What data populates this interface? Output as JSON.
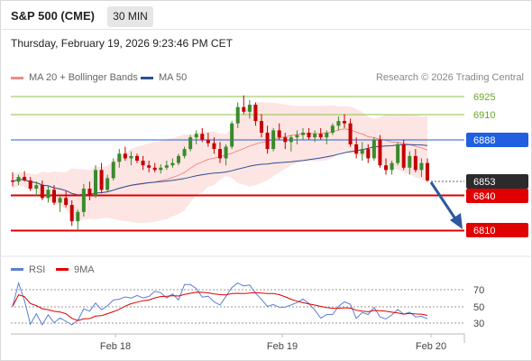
{
  "header": {
    "title": "S&P 500 (CME)",
    "timeframe": "30 MIN"
  },
  "datetime": "Thursday, February 19, 2026 9:23:46 PM CET",
  "legend": [
    {
      "label": "MA 20 + Bollinger Bands",
      "color": "#f08c84"
    },
    {
      "label": "MA 50",
      "color": "#2c4f96"
    }
  ],
  "watermark": "Research © 2026 Trading Central",
  "levels": [
    {
      "value": "6925",
      "kind": "resistance-green"
    },
    {
      "value": "6910",
      "kind": "resistance-green"
    },
    {
      "value": "6888",
      "kind": "pivot-blue"
    },
    {
      "value": "6853",
      "kind": "last-price"
    },
    {
      "value": "6840",
      "kind": "support-red"
    },
    {
      "value": "6810",
      "kind": "support-red"
    }
  ],
  "rsi_legend": [
    {
      "label": "RSI",
      "color": "#5b7fd6"
    },
    {
      "label": "9MA",
      "color": "#e00000"
    }
  ],
  "rsi_levels": [
    "70",
    "50",
    "30"
  ],
  "x_axis": [
    "Feb 18",
    "Feb 19",
    "Feb 20"
  ],
  "colors": {
    "up": "#3a8a2c",
    "down": "#c40000",
    "pivot": "#1f5fe0",
    "support": "#e00000",
    "resistance": "#8bc34a"
  },
  "chart_data": {
    "type": "candlestick",
    "timeframe": "30 MIN",
    "instrument": "S&P 500 (CME)",
    "y_levels": [
      6925,
      6910,
      6888,
      6853,
      6840,
      6810
    ],
    "last_price": 6853,
    "projection": {
      "from": 6853,
      "to": 6810
    },
    "ohlc": [
      [
        6853,
        6860,
        6848,
        6852
      ],
      [
        6852,
        6858,
        6849,
        6856
      ],
      [
        6856,
        6861,
        6852,
        6853
      ],
      [
        6853,
        6856,
        6844,
        6846
      ],
      [
        6846,
        6852,
        6840,
        6849
      ],
      [
        6849,
        6853,
        6836,
        6838
      ],
      [
        6838,
        6848,
        6834,
        6845
      ],
      [
        6845,
        6849,
        6832,
        6834
      ],
      [
        6834,
        6840,
        6826,
        6838
      ],
      [
        6838,
        6844,
        6830,
        6832
      ],
      [
        6832,
        6836,
        6814,
        6818
      ],
      [
        6818,
        6828,
        6810,
        6826
      ],
      [
        6826,
        6850,
        6822,
        6846
      ],
      [
        6846,
        6852,
        6836,
        6840
      ],
      [
        6840,
        6866,
        6838,
        6862
      ],
      [
        6862,
        6868,
        6842,
        6845
      ],
      [
        6845,
        6858,
        6843,
        6855
      ],
      [
        6855,
        6872,
        6853,
        6869
      ],
      [
        6869,
        6880,
        6864,
        6876
      ],
      [
        6876,
        6882,
        6870,
        6872
      ],
      [
        6872,
        6878,
        6866,
        6874
      ],
      [
        6874,
        6876,
        6868,
        6870
      ],
      [
        6870,
        6874,
        6862,
        6866
      ],
      [
        6866,
        6870,
        6860,
        6864
      ],
      [
        6864,
        6868,
        6860,
        6862
      ],
      [
        6862,
        6867,
        6859,
        6864
      ],
      [
        6864,
        6870,
        6862,
        6866
      ],
      [
        6866,
        6872,
        6864,
        6868
      ],
      [
        6868,
        6876,
        6866,
        6874
      ],
      [
        6874,
        6882,
        6872,
        6880
      ],
      [
        6880,
        6892,
        6878,
        6890
      ],
      [
        6890,
        6896,
        6884,
        6893
      ],
      [
        6893,
        6898,
        6886,
        6888
      ],
      [
        6888,
        6894,
        6882,
        6885
      ],
      [
        6885,
        6890,
        6876,
        6880
      ],
      [
        6880,
        6886,
        6868,
        6872
      ],
      [
        6872,
        6884,
        6866,
        6882
      ],
      [
        6882,
        6904,
        6880,
        6902
      ],
      [
        6902,
        6920,
        6898,
        6916
      ],
      [
        6916,
        6926,
        6910,
        6912
      ],
      [
        6912,
        6922,
        6906,
        6918
      ],
      [
        6918,
        6920,
        6900,
        6904
      ],
      [
        6904,
        6910,
        6890,
        6894
      ],
      [
        6894,
        6900,
        6876,
        6880
      ],
      [
        6880,
        6898,
        6878,
        6896
      ],
      [
        6896,
        6902,
        6888,
        6890
      ],
      [
        6890,
        6894,
        6880,
        6886
      ],
      [
        6886,
        6892,
        6878,
        6890
      ],
      [
        6890,
        6896,
        6884,
        6892
      ],
      [
        6892,
        6898,
        6888,
        6894
      ],
      [
        6894,
        6898,
        6888,
        6890
      ],
      [
        6890,
        6896,
        6886,
        6893
      ],
      [
        6893,
        6898,
        6888,
        6890
      ],
      [
        6890,
        6896,
        6884,
        6894
      ],
      [
        6894,
        6902,
        6892,
        6900
      ],
      [
        6900,
        6908,
        6896,
        6904
      ],
      [
        6904,
        6910,
        6898,
        6902
      ],
      [
        6902,
        6906,
        6882,
        6884
      ],
      [
        6884,
        6890,
        6872,
        6876
      ],
      [
        6876,
        6886,
        6870,
        6880
      ],
      [
        6880,
        6884,
        6868,
        6872
      ],
      [
        6872,
        6890,
        6870,
        6888
      ],
      [
        6888,
        6892,
        6864,
        6866
      ],
      [
        6866,
        6872,
        6858,
        6862
      ],
      [
        6862,
        6870,
        6858,
        6868
      ],
      [
        6868,
        6886,
        6866,
        6884
      ],
      [
        6884,
        6888,
        6862,
        6864
      ],
      [
        6864,
        6878,
        6858,
        6874
      ],
      [
        6874,
        6880,
        6860,
        6862
      ],
      [
        6862,
        6872,
        6856,
        6868
      ],
      [
        6868,
        6872,
        6852,
        6853
      ]
    ]
  }
}
